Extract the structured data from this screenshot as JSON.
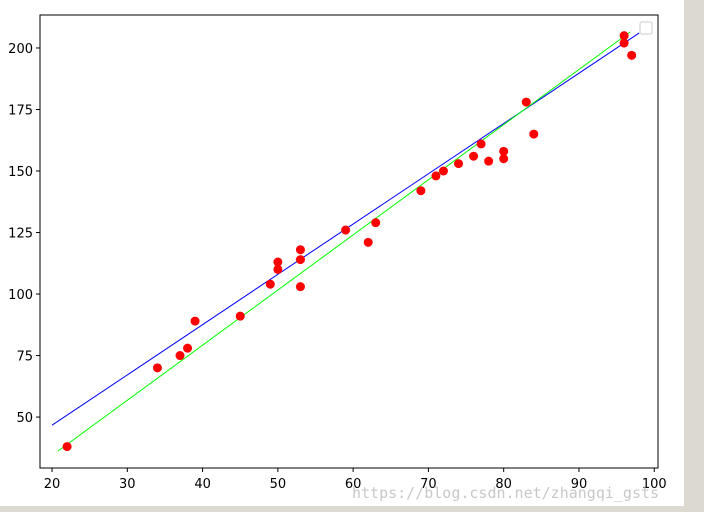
{
  "chart_data": {
    "type": "scatter",
    "x": [
      22,
      34,
      37,
      38,
      39,
      45,
      49,
      50,
      50,
      53,
      53,
      53,
      59,
      62,
      63,
      69,
      71,
      72,
      74,
      76,
      77,
      78,
      80,
      80,
      83,
      84,
      96,
      96,
      97
    ],
    "values": [
      38,
      70,
      75,
      78,
      89,
      91,
      104,
      113,
      110,
      118,
      114,
      103,
      126,
      121,
      129,
      142,
      148,
      150,
      153,
      156,
      161,
      154,
      158,
      155,
      178,
      165,
      205,
      202,
      197
    ],
    "color": "#ff0000",
    "lines": [
      {
        "color": "#0000ff",
        "x": [
          20,
          98
        ],
        "values": [
          46.7,
          206.1
        ]
      },
      {
        "color": "#00ff00",
        "x": [
          20.8,
          96.8
        ],
        "values": [
          36.2,
          206.5
        ]
      }
    ],
    "xlim": [
      18.4,
      100.5
    ],
    "ylim": [
      29.3,
      213.4
    ],
    "xticks": [
      20,
      30,
      40,
      50,
      60,
      70,
      80,
      90,
      100
    ],
    "yticks": [
      50,
      75,
      100,
      125,
      150,
      175,
      200
    ],
    "grid": false,
    "legend": "upper right",
    "watermark": "https://blog.csdn.net/zhangqi_gsts"
  }
}
